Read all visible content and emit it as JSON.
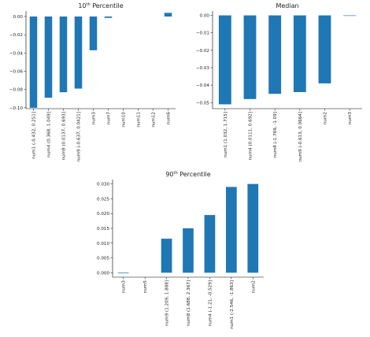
{
  "colors": {
    "bar": "#1f77b4"
  },
  "chart_data": [
    {
      "type": "bar",
      "title": "10th Percentile",
      "xlabel": "",
      "ylabel": "",
      "categories": [
        "num1 (-0.432, 0.251]",
        "num4 (0.368, 1.049]",
        "num8 (0.0137, 0.693]",
        "num9 (-0.637, 0.0421]",
        "num3",
        "num7",
        "num10",
        "num11",
        "num12",
        "num6"
      ],
      "values": [
        -0.1,
        -0.089,
        -0.083,
        -0.079,
        -0.037,
        -0.0015,
        0,
        0,
        0,
        0.004
      ],
      "ylim": [
        -0.101,
        0.006
      ],
      "yticks": [
        0.0,
        -0.02,
        -0.04,
        -0.06,
        -0.08,
        -0.1
      ],
      "ytick_labels": [
        "0.00",
        "−0.02",
        "−0.04",
        "−0.06",
        "−0.08",
        "−0.10"
      ],
      "grid": false
    },
    {
      "type": "bar",
      "title": "Median",
      "xlabel": "",
      "ylabel": "",
      "categories": [
        "num1 (1.032, 1.715]",
        "num4 (0.0111, 0.692]",
        "num8 (-1.769, -1.09]",
        "num9 (-0.613, 0.0664]",
        "num2",
        "num3"
      ],
      "values": [
        -0.051,
        -0.048,
        -0.045,
        -0.044,
        -0.039,
        -0.0003
      ],
      "ylim": [
        -0.0535,
        0.0025
      ],
      "yticks": [
        0.0,
        -0.01,
        -0.02,
        -0.03,
        -0.04,
        -0.05
      ],
      "ytick_labels": [
        "0.00",
        "−0.01",
        "−0.02",
        "−0.03",
        "−0.04",
        "−0.05"
      ],
      "grid": false
    },
    {
      "type": "bar",
      "title": "90th Percentile",
      "xlabel": "",
      "ylabel": "",
      "categories": [
        "num3",
        "num5",
        "num9 (1.209, 1.888]",
        "num8 (1.688, 2.367]",
        "num4 (-1.21, -0.529]",
        "num1 (-2.546, -1.863]",
        "num2"
      ],
      "values": [
        -0.0002,
        0,
        0.0115,
        0.015,
        0.0195,
        0.029,
        0.03
      ],
      "ylim": [
        -0.0015,
        0.0315
      ],
      "yticks": [
        0.0,
        0.005,
        0.01,
        0.015,
        0.02,
        0.025,
        0.03
      ],
      "ytick_labels": [
        "0.000",
        "0.005",
        "0.010",
        "0.015",
        "0.020",
        "0.025",
        "0.030"
      ],
      "grid": false
    }
  ]
}
